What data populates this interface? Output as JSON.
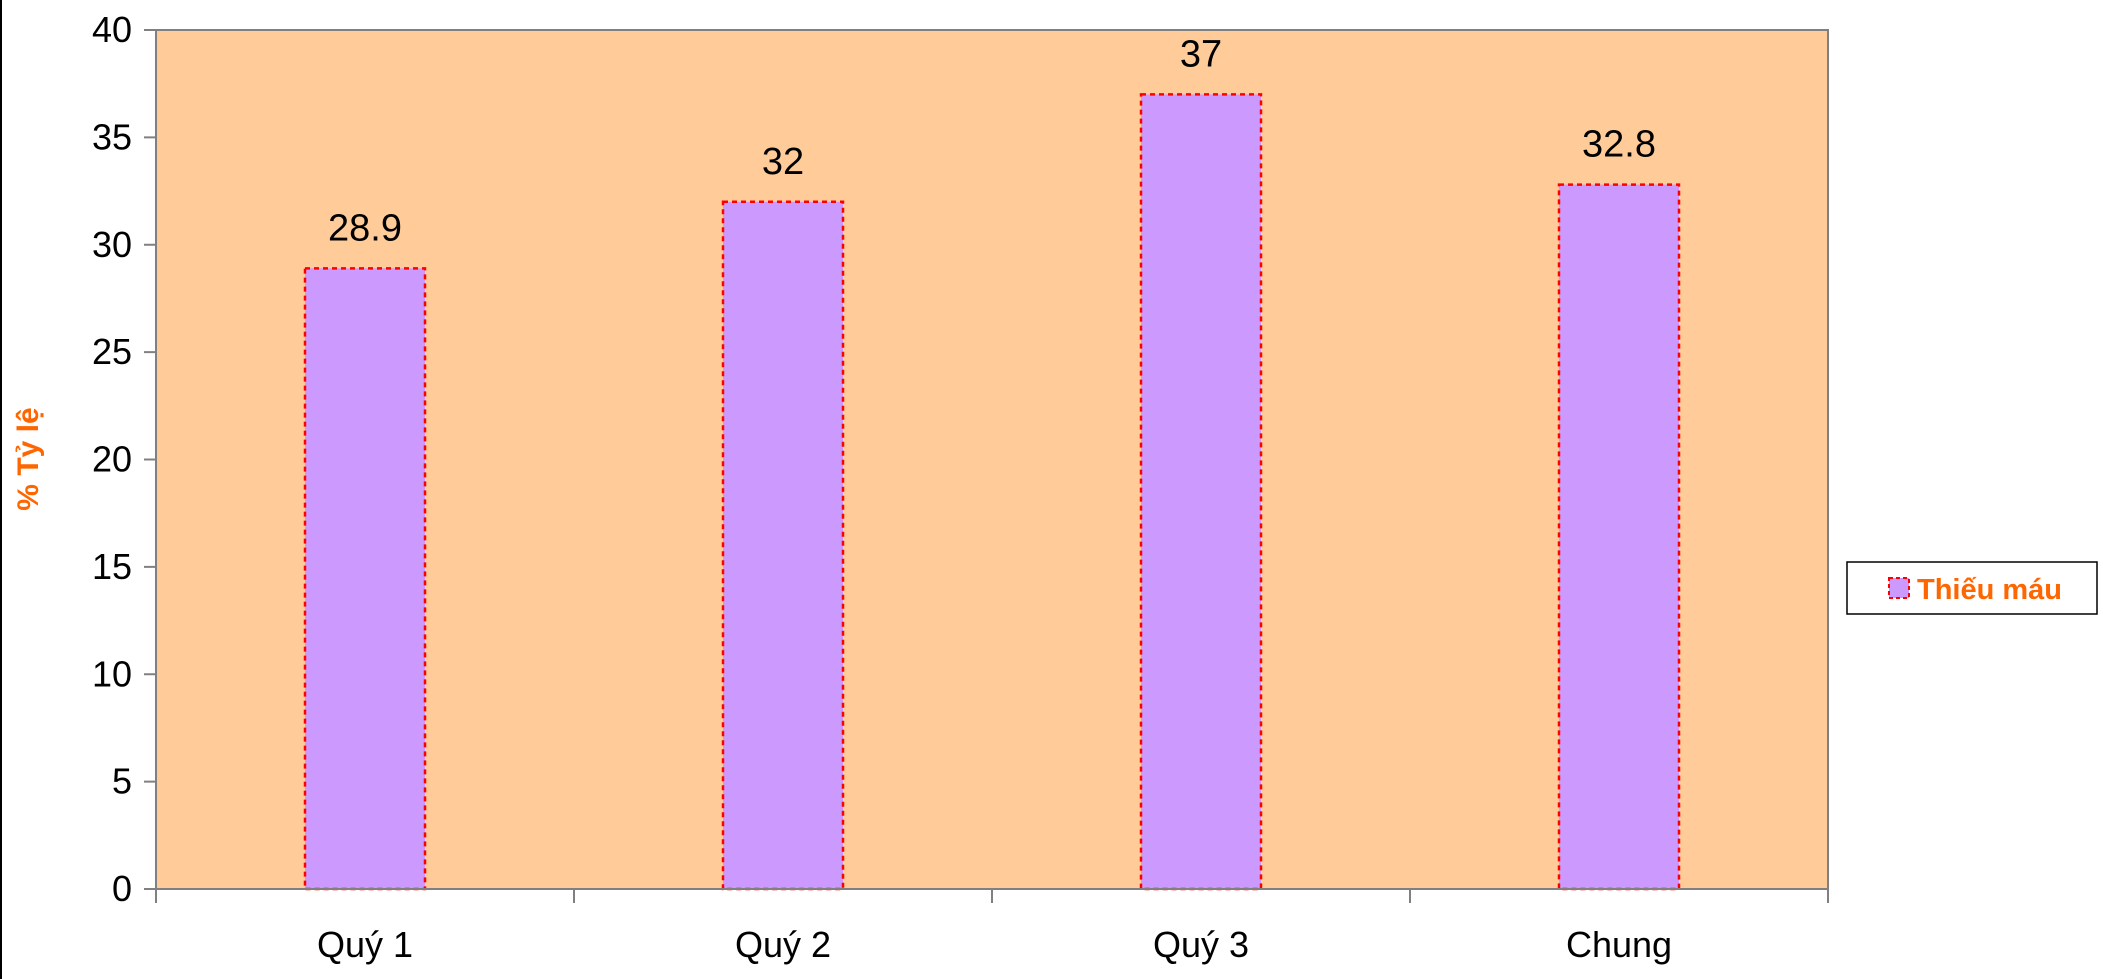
{
  "chart_data": {
    "type": "bar",
    "title": "",
    "xlabel": "",
    "ylabel": "% Tỷ lệ",
    "categories": [
      "Quý 1",
      "Quý 2",
      "Quý 3",
      "Chung"
    ],
    "series": [
      {
        "name": "Thiếu máu",
        "values": [
          28.9,
          32,
          37,
          32.8
        ]
      }
    ],
    "data_labels": [
      "28.9",
      "32",
      "37",
      "32.8"
    ],
    "ylim": [
      0,
      40
    ],
    "yticks": [
      0,
      5,
      10,
      15,
      20,
      25,
      30,
      35,
      40
    ],
    "grid": false,
    "legend_position": "right",
    "colors": {
      "plot_background": "#FFCC99",
      "bar_fill": "#CC99FF",
      "bar_border": "#FF0000",
      "label_accent": "#FF6600",
      "axis": "#808080"
    }
  }
}
